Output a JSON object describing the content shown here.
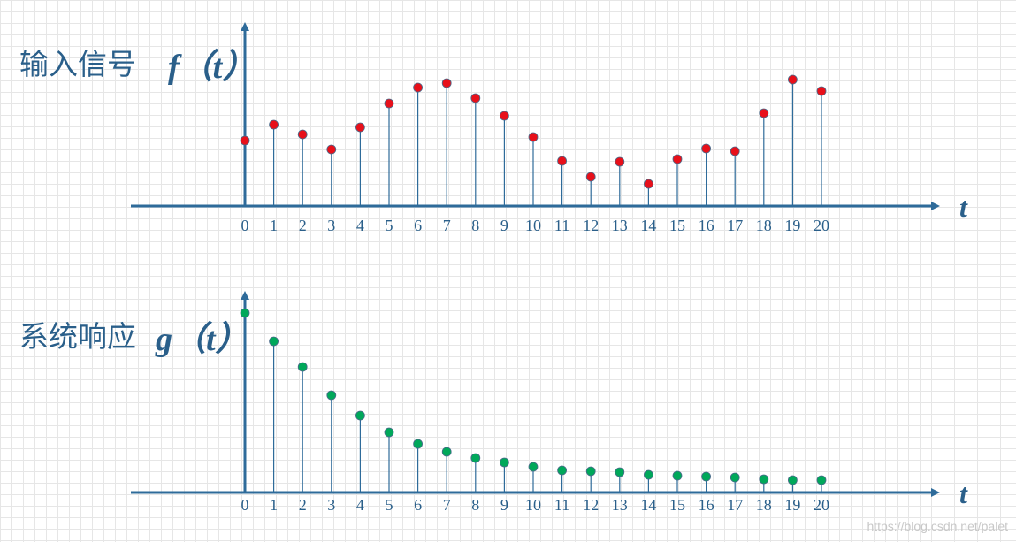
{
  "chart_data": [
    {
      "type": "stem",
      "title": "输入信号",
      "symbol": "f（t）",
      "x_label": "t",
      "color": "#e8101a",
      "x": [
        0,
        1,
        2,
        3,
        4,
        5,
        6,
        7,
        8,
        9,
        10,
        11,
        12,
        13,
        14,
        15,
        16,
        17,
        18,
        19,
        20
      ],
      "values": [
        74,
        92,
        81,
        64,
        89,
        116,
        134,
        139,
        122,
        102,
        78,
        51,
        33,
        50,
        25,
        53,
        65,
        62,
        105,
        143,
        130
      ],
      "ylim": [
        0,
        200
      ]
    },
    {
      "type": "stem",
      "title": "系统响应",
      "symbol": "g（t）",
      "x_label": "t",
      "color": "#00a85a",
      "x": [
        0,
        1,
        2,
        3,
        4,
        5,
        6,
        7,
        8,
        9,
        10,
        11,
        12,
        13,
        14,
        15,
        16,
        17,
        18,
        19,
        20
      ],
      "values": [
        203,
        171,
        142,
        110,
        87,
        68,
        55,
        46,
        39,
        34,
        29,
        25,
        24,
        23,
        20,
        19,
        18,
        17,
        15,
        14,
        14
      ],
      "ylim": [
        0,
        220
      ]
    }
  ],
  "watermark": "https://blog.csdn.net/palet"
}
